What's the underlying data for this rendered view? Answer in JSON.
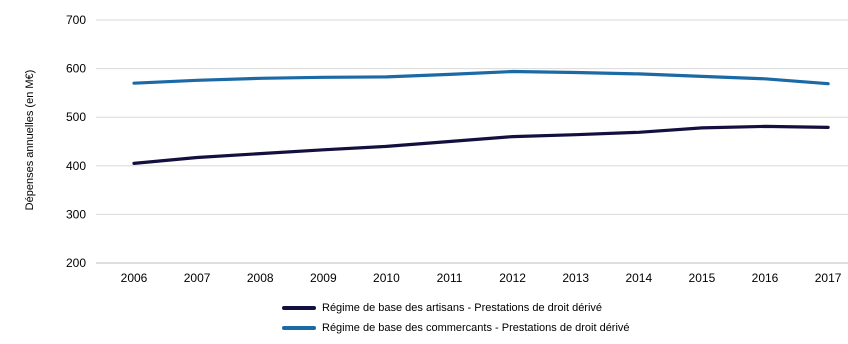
{
  "chart_data": {
    "type": "line",
    "title": "",
    "xlabel": "",
    "ylabel": "Dépenses annuelles (en M€)",
    "x": [
      "2006",
      "2007",
      "2008",
      "2009",
      "2010",
      "2011",
      "2012",
      "2013",
      "2014",
      "2015",
      "2016",
      "2017"
    ],
    "ylim": [
      200,
      700
    ],
    "yticks": [
      "200",
      "300",
      "400",
      "500",
      "600",
      "700"
    ],
    "grid": true,
    "legend_position": "bottom",
    "series": [
      {
        "name": "Régime de base des artisans - Prestations de droit dérivé",
        "color": "#13103f",
        "values": [
          405,
          417,
          425,
          433,
          440,
          450,
          460,
          464,
          469,
          478,
          481,
          479
        ]
      },
      {
        "name": "Régime de base des commercants - Prestations de droit dérivé",
        "color": "#1b6aa6",
        "values": [
          570,
          576,
          580,
          582,
          583,
          588,
          594,
          592,
          589,
          584,
          579,
          569
        ]
      }
    ]
  }
}
